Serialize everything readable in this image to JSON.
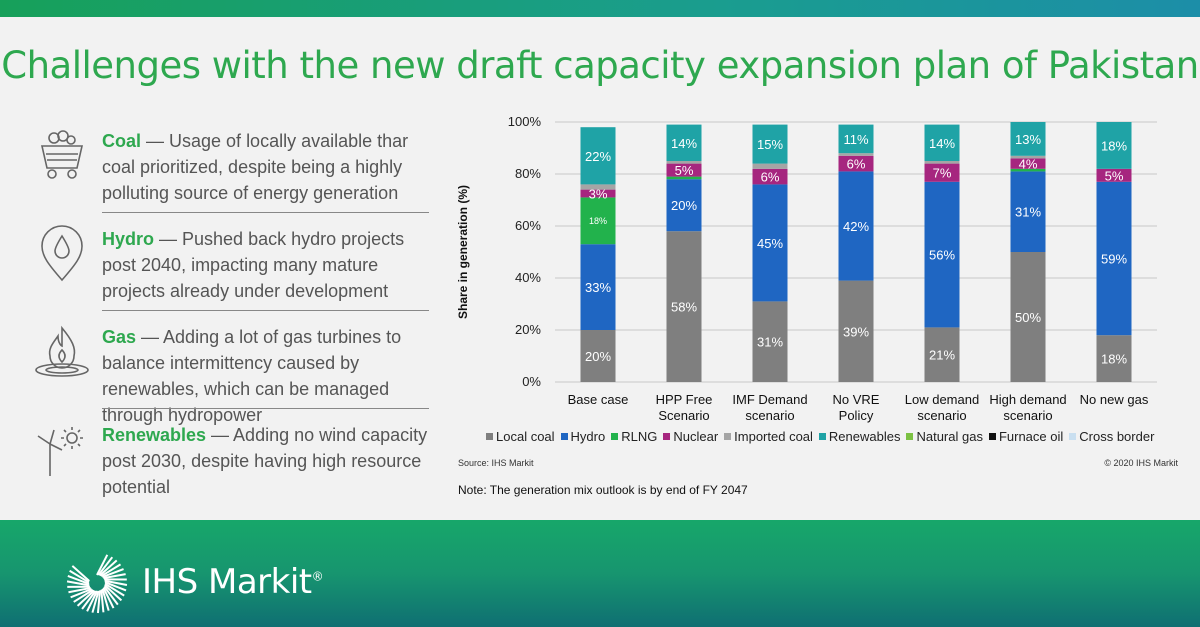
{
  "title": "Challenges with the new draft capacity expansion plan of Pakistan",
  "items": [
    {
      "icon": "coal-cart-icon",
      "head": "Coal",
      "text": " — Usage of locally available thar coal prioritized, despite being a highly polluting source of energy generation"
    },
    {
      "icon": "water-drop-pin-icon",
      "head": "Hydro",
      "text": " — Pushed back hydro projects post 2040, impacting many mature projects already under development"
    },
    {
      "icon": "gas-flame-icon",
      "head": "Gas",
      "text": " — Adding a lot of gas turbines to balance intermittency caused by renewables, which can be managed through hydropower"
    },
    {
      "icon": "wind-turbine-sun-icon",
      "head": "Renewables",
      "text": " — Adding no wind capacity post 2030, despite having high resource potential"
    }
  ],
  "chart_data": {
    "type": "bar",
    "stacked": true,
    "ylabel": "Share in generation (%)",
    "ylim": [
      0,
      100
    ],
    "yticks": [
      "0%",
      "20%",
      "40%",
      "60%",
      "80%",
      "100%"
    ],
    "grid": true,
    "legend_position": "bottom",
    "categories": [
      [
        "Base case"
      ],
      [
        "HPP Free",
        "Scenario"
      ],
      [
        "IMF Demand",
        "scenario"
      ],
      [
        "No VRE",
        "Policy"
      ],
      [
        "Low demand",
        "scenario"
      ],
      [
        "High demand",
        "scenario"
      ],
      [
        "No new gas"
      ]
    ],
    "series": [
      {
        "name": "Local coal",
        "color": "#7f7f7f",
        "values": [
          20,
          58,
          31,
          39,
          21,
          50,
          18
        ],
        "labels": [
          "20%",
          "58%",
          "31%",
          "39%",
          "21%",
          "50%",
          "18%"
        ]
      },
      {
        "name": "Hydro",
        "color": "#1f66c2",
        "values": [
          33,
          20,
          45,
          42,
          56,
          31,
          59
        ],
        "labels": [
          "33%",
          "20%",
          "45%",
          "42%",
          "56%",
          "31%",
          "59%"
        ]
      },
      {
        "name": "RLNG",
        "color": "#22b24c",
        "values": [
          18,
          1,
          0,
          0,
          0,
          1,
          0
        ],
        "labels": [
          "18%",
          "",
          "",
          "",
          "",
          "",
          ""
        ]
      },
      {
        "name": "Nuclear",
        "color": "#a6267f",
        "values": [
          3,
          5,
          6,
          6,
          7,
          4,
          5
        ],
        "labels": [
          "3%",
          "5%",
          "6%",
          "6%",
          "7%",
          "4%",
          "5%"
        ]
      },
      {
        "name": "Imported coal",
        "color": "#a5a5a5",
        "values": [
          2,
          1,
          2,
          1,
          1,
          1,
          0
        ],
        "labels": [
          "",
          "",
          "",
          "",
          "",
          "",
          ""
        ]
      },
      {
        "name": "Renewables",
        "color": "#1fa3a6",
        "values": [
          22,
          14,
          15,
          11,
          14,
          13,
          18
        ],
        "labels": [
          "22%",
          "14%",
          "15%",
          "11%",
          "14%",
          "13%",
          "18%"
        ]
      },
      {
        "name": "Natural gas",
        "color": "#7cc143",
        "values": [
          0,
          0,
          0,
          0,
          0,
          0,
          0
        ],
        "labels": [
          "",
          "",
          "",
          "",
          "",
          "",
          ""
        ]
      },
      {
        "name": "Furnace oil",
        "color": "#111111",
        "values": [
          0,
          0,
          0,
          0,
          0,
          0,
          0
        ],
        "labels": [
          "",
          "",
          "",
          "",
          "",
          "",
          ""
        ]
      },
      {
        "name": "Cross border",
        "color": "#c9dff0",
        "values": [
          0,
          0,
          0,
          0,
          0,
          0,
          0
        ],
        "labels": [
          "",
          "",
          "",
          "",
          "",
          "",
          ""
        ]
      }
    ]
  },
  "source": "Source: IHS Markit",
  "copyright": "© 2020 IHS Markit",
  "note": "Note: The generation mix outlook is by end of FY 2047",
  "brand": "IHS Markit",
  "brand_mark": "®"
}
